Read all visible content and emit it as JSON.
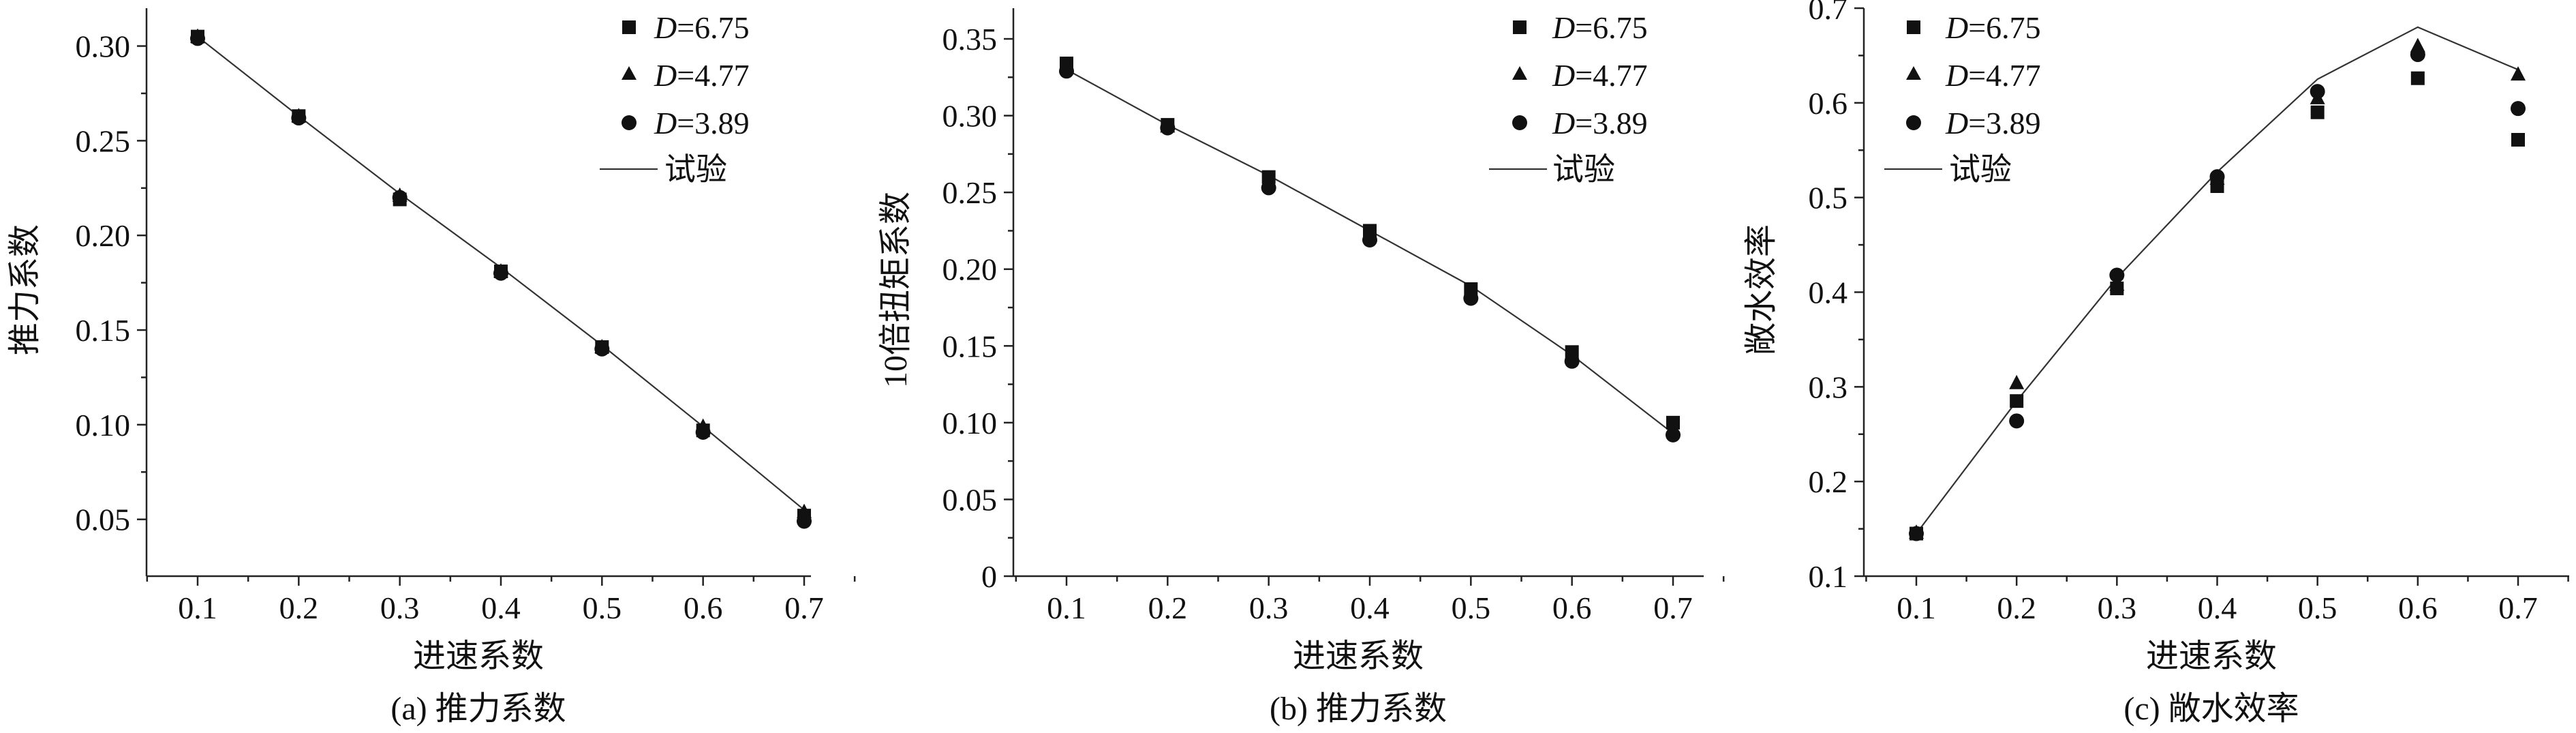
{
  "chart_data": [
    {
      "type": "scatter",
      "caption": "(a) 推力系数",
      "xlabel": "进速系数",
      "ylabel": "推力系数",
      "xlim": [
        0.05,
        0.75
      ],
      "ylim": [
        0.03,
        0.32
      ],
      "xticks": [
        0.1,
        0.2,
        0.3,
        0.4,
        0.5,
        0.6,
        0.7
      ],
      "xticklabels": [
        "0.1",
        "0.2",
        "0.3",
        "0.4",
        "0.5",
        "0.6",
        "0.7"
      ],
      "yticks": [
        0.05,
        0.1,
        0.15,
        0.2,
        0.25,
        0.3
      ],
      "yticklabels": [
        "0.05",
        "0.10",
        "0.15",
        "0.20",
        "0.25",
        "0.30"
      ],
      "legend_position": "top-right",
      "x": [
        0.1,
        0.2,
        0.3,
        0.4,
        0.5,
        0.6,
        0.7
      ],
      "series": [
        {
          "name_prefix": "D",
          "name_value": "=6.75",
          "marker": "square",
          "values": [
            0.305,
            0.263,
            0.219,
            0.181,
            0.141,
            0.097,
            0.052
          ]
        },
        {
          "name_prefix": "D",
          "name_value": "=4.77",
          "marker": "triangle",
          "values": [
            0.305,
            0.263,
            0.221,
            0.181,
            0.141,
            0.099,
            0.054
          ]
        },
        {
          "name_prefix": "D",
          "name_value": "=3.89",
          "marker": "circle",
          "values": [
            0.304,
            0.262,
            0.22,
            0.18,
            0.14,
            0.096,
            0.049
          ]
        }
      ],
      "line": {
        "name": "试验",
        "values": [
          0.305,
          0.263,
          0.222,
          0.183,
          0.142,
          0.099,
          0.055
        ]
      }
    },
    {
      "type": "scatter",
      "caption": "(b) 推力系数",
      "xlabel": "进速系数",
      "ylabel": "10倍扭矩系数",
      "xlim": [
        0.05,
        0.75
      ],
      "ylim": [
        0,
        0.37
      ],
      "xticks": [
        0.1,
        0.2,
        0.3,
        0.4,
        0.5,
        0.6,
        0.7
      ],
      "xticklabels": [
        "0.1",
        "0.2",
        "0.3",
        "0.4",
        "0.5",
        "0.6",
        "0.7"
      ],
      "yticks": [
        0,
        0.05,
        0.1,
        0.15,
        0.2,
        0.25,
        0.3,
        0.35
      ],
      "yticklabels": [
        "0",
        "0.05",
        "0.10",
        "0.15",
        "0.20",
        "0.25",
        "0.30",
        "0.35"
      ],
      "legend_position": "top-right",
      "x": [
        0.1,
        0.2,
        0.3,
        0.4,
        0.5,
        0.6,
        0.7
      ],
      "series": [
        {
          "name_prefix": "D",
          "name_value": "=6.75",
          "marker": "square",
          "values": [
            0.334,
            0.294,
            0.26,
            0.225,
            0.187,
            0.146,
            0.1
          ]
        },
        {
          "name_prefix": "D",
          "name_value": "=4.77",
          "marker": "triangle",
          "values": [
            0.332,
            0.293,
            0.257,
            0.222,
            0.185,
            0.143,
            0.096
          ]
        },
        {
          "name_prefix": "D",
          "name_value": "=3.89",
          "marker": "circle",
          "values": [
            0.329,
            0.292,
            0.253,
            0.219,
            0.181,
            0.14,
            0.092
          ]
        }
      ],
      "line": {
        "name": "试验",
        "values": [
          0.33,
          0.294,
          0.261,
          0.225,
          0.189,
          0.144,
          0.093
        ]
      }
    },
    {
      "type": "scatter",
      "caption": "(c) 敞水效率",
      "xlabel": "进速系数",
      "ylabel": "敞水效率",
      "xlim": [
        0.05,
        0.75
      ],
      "ylim": [
        0.1,
        0.7
      ],
      "xticks": [
        0.1,
        0.2,
        0.3,
        0.4,
        0.5,
        0.6,
        0.7
      ],
      "xticklabels": [
        "0.1",
        "0.2",
        "0.3",
        "0.4",
        "0.5",
        "0.6",
        "0.7"
      ],
      "yticks": [
        0.1,
        0.2,
        0.3,
        0.4,
        0.5,
        0.6,
        0.7
      ],
      "yticklabels": [
        "0.1",
        "0.2",
        "0.3",
        "0.4",
        "0.5",
        "0.6",
        "0.7"
      ],
      "legend_position": "top-left",
      "x": [
        0.1,
        0.2,
        0.3,
        0.4,
        0.5,
        0.6,
        0.7
      ],
      "series": [
        {
          "name_prefix": "D",
          "name_value": "=6.75",
          "marker": "square",
          "values": [
            0.145,
            0.285,
            0.404,
            0.512,
            0.59,
            0.626,
            0.561
          ]
        },
        {
          "name_prefix": "D",
          "name_value": "=4.77",
          "marker": "triangle",
          "values": [
            0.146,
            0.304,
            0.408,
            0.52,
            0.605,
            0.66,
            0.63
          ]
        },
        {
          "name_prefix": "D",
          "name_value": "=3.89",
          "marker": "circle",
          "values": [
            0.145,
            0.264,
            0.418,
            0.522,
            0.612,
            0.651,
            0.594
          ]
        }
      ],
      "line": {
        "name": "试验",
        "values": [
          0.145,
          0.285,
          0.415,
          0.527,
          0.625,
          0.68,
          0.635
        ]
      }
    }
  ]
}
